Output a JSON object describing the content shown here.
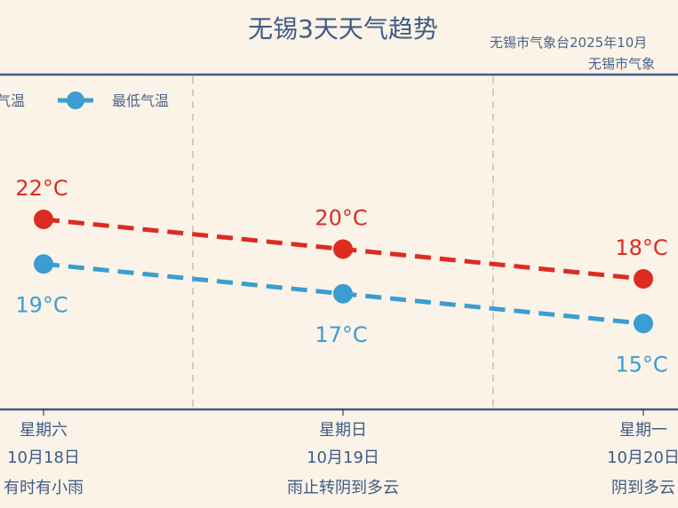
{
  "chart_data": {
    "type": "line",
    "title": "无锡3天天气趋势",
    "subtitle_lines": [
      "无锡市气象台2025年10月",
      "无锡市气象"
    ],
    "categories": [
      {
        "weekday": "星期六",
        "date": "10月18日",
        "weather": "有时有小雨"
      },
      {
        "weekday": "星期日",
        "date": "10月19日",
        "weather": "雨止转阴到多云"
      },
      {
        "weekday": "星期一",
        "date": "10月20日",
        "weather": "阴到多云"
      }
    ],
    "series": [
      {
        "name": "高气温",
        "values": [
          22,
          20,
          18
        ],
        "color": "#dd2b22",
        "labels": [
          "22°C",
          "20°C",
          "18°C"
        ]
      },
      {
        "name": "最低气温",
        "values": [
          19,
          17,
          15
        ],
        "color": "#3b9dd1",
        "labels": [
          "19°C",
          "17°C",
          "15°C"
        ]
      }
    ],
    "line_style": "dashed",
    "grid": "vertical dashed separators",
    "legend_placement": "top-left",
    "colors": {
      "background": "#fbf3e7",
      "axis": "#3e5c86",
      "title": "#3e5c86",
      "separator": "#c8c0b4"
    }
  }
}
